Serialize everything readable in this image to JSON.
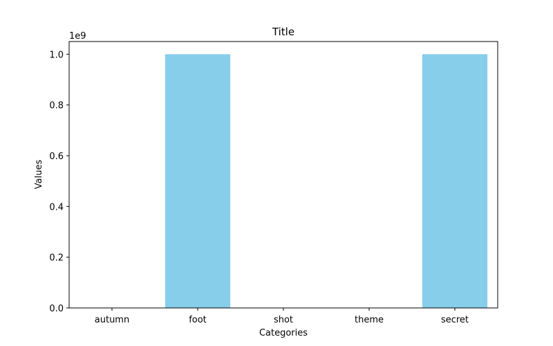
{
  "chart_data": {
    "type": "bar",
    "title": "Title",
    "xlabel": "Categories",
    "ylabel": "Values",
    "y_scale_label": "1e9",
    "categories": [
      "autumn",
      "foot",
      "shot",
      "theme",
      "secret"
    ],
    "values": [
      0,
      1000000000,
      0,
      0,
      1000000000
    ],
    "y_ticks": [
      0.0,
      0.2,
      0.4,
      0.6,
      0.8,
      1.0
    ],
    "y_tick_labels": [
      "0.0",
      "0.2",
      "0.4",
      "0.6",
      "0.8",
      "1.0"
    ],
    "y_scale": 1000000000,
    "ylim": [
      0,
      1050000000
    ],
    "grid": false,
    "bar_color": "#87ceeb"
  }
}
